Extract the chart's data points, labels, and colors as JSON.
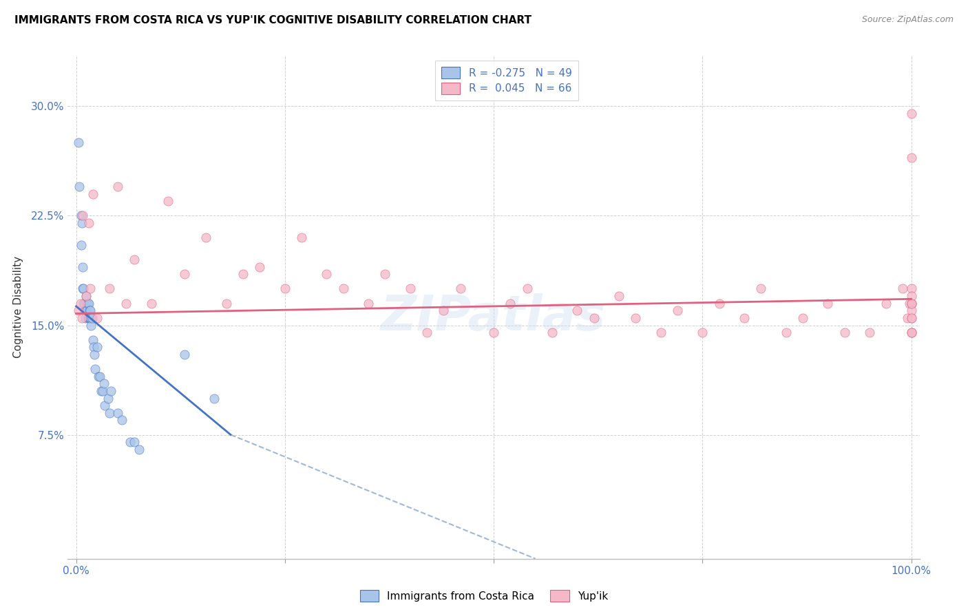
{
  "title": "IMMIGRANTS FROM COSTA RICA VS YUP'IK COGNITIVE DISABILITY CORRELATION CHART",
  "source": "Source: ZipAtlas.com",
  "ylabel": "Cognitive Disability",
  "yticks": [
    "7.5%",
    "15.0%",
    "22.5%",
    "30.0%"
  ],
  "ytick_vals": [
    0.075,
    0.15,
    0.225,
    0.3
  ],
  "xlim": [
    -0.01,
    1.01
  ],
  "ylim": [
    -0.01,
    0.335
  ],
  "color_blue": "#a8c4e8",
  "color_pink": "#f4b8c8",
  "color_trendline_blue": "#4472c4",
  "color_trendline_pink": "#e06080",
  "color_trendline_dash": "#a0b8d8",
  "color_text_blue": "#4472c4",
  "color_grid": "#cccccc",
  "watermark": "ZIPatlas",
  "legend_label1": "Immigrants from Costa Rica",
  "legend_label2": "Yup'ik",
  "trendline_blue_x0": 0.0,
  "trendline_blue_y0": 0.163,
  "trendline_blue_x1": 0.185,
  "trendline_blue_y1": 0.075,
  "trendline_blue_dash_x0": 0.185,
  "trendline_blue_dash_y0": 0.075,
  "trendline_blue_dash_x1": 0.55,
  "trendline_blue_dash_y1": -0.01,
  "trendline_pink_x0": 0.0,
  "trendline_pink_y0": 0.158,
  "trendline_pink_x1": 1.0,
  "trendline_pink_y1": 0.168,
  "costa_rica_x": [
    0.003,
    0.004,
    0.006,
    0.006,
    0.007,
    0.008,
    0.008,
    0.009,
    0.009,
    0.01,
    0.01,
    0.011,
    0.011,
    0.012,
    0.012,
    0.013,
    0.013,
    0.014,
    0.014,
    0.015,
    0.015,
    0.016,
    0.016,
    0.017,
    0.017,
    0.018,
    0.018,
    0.019,
    0.02,
    0.021,
    0.022,
    0.023,
    0.025,
    0.027,
    0.028,
    0.03,
    0.032,
    0.033,
    0.034,
    0.038,
    0.04,
    0.042,
    0.05,
    0.055,
    0.065,
    0.07,
    0.075,
    0.13,
    0.165
  ],
  "costa_rica_y": [
    0.275,
    0.245,
    0.225,
    0.205,
    0.22,
    0.19,
    0.175,
    0.175,
    0.165,
    0.165,
    0.16,
    0.16,
    0.155,
    0.17,
    0.16,
    0.165,
    0.16,
    0.155,
    0.165,
    0.165,
    0.155,
    0.16,
    0.155,
    0.16,
    0.155,
    0.155,
    0.15,
    0.155,
    0.14,
    0.135,
    0.13,
    0.12,
    0.135,
    0.115,
    0.115,
    0.105,
    0.105,
    0.11,
    0.095,
    0.1,
    0.09,
    0.105,
    0.09,
    0.085,
    0.07,
    0.07,
    0.065,
    0.13,
    0.1
  ],
  "yupik_x": [
    0.003,
    0.005,
    0.007,
    0.008,
    0.012,
    0.015,
    0.017,
    0.02,
    0.025,
    0.04,
    0.05,
    0.06,
    0.07,
    0.09,
    0.11,
    0.13,
    0.155,
    0.18,
    0.2,
    0.22,
    0.25,
    0.27,
    0.3,
    0.32,
    0.35,
    0.37,
    0.4,
    0.42,
    0.44,
    0.46,
    0.5,
    0.52,
    0.54,
    0.57,
    0.6,
    0.62,
    0.65,
    0.67,
    0.7,
    0.72,
    0.75,
    0.77,
    0.8,
    0.82,
    0.85,
    0.87,
    0.9,
    0.92,
    0.95,
    0.97,
    0.99,
    0.995,
    0.998,
    1.0,
    1.0,
    1.0,
    1.0,
    1.0,
    1.0,
    1.0,
    1.0,
    1.0,
    1.0,
    1.0,
    1.0,
    1.0
  ],
  "yupik_y": [
    0.16,
    0.165,
    0.155,
    0.225,
    0.17,
    0.22,
    0.175,
    0.24,
    0.155,
    0.175,
    0.245,
    0.165,
    0.195,
    0.165,
    0.235,
    0.185,
    0.21,
    0.165,
    0.185,
    0.19,
    0.175,
    0.21,
    0.185,
    0.175,
    0.165,
    0.185,
    0.175,
    0.145,
    0.16,
    0.175,
    0.145,
    0.165,
    0.175,
    0.145,
    0.16,
    0.155,
    0.17,
    0.155,
    0.145,
    0.16,
    0.145,
    0.165,
    0.155,
    0.175,
    0.145,
    0.155,
    0.165,
    0.145,
    0.145,
    0.165,
    0.175,
    0.155,
    0.165,
    0.175,
    0.145,
    0.165,
    0.155,
    0.165,
    0.17,
    0.145,
    0.16,
    0.155,
    0.165,
    0.295,
    0.265,
    0.145
  ]
}
